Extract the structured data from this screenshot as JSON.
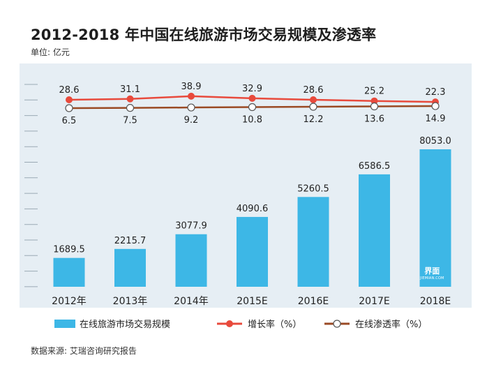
{
  "title": "2012-2018 年中国在线旅游市场交易规模及渗透率",
  "unit": "单位: 亿元",
  "source": "数据来源: 艾瑞咨询研究报告",
  "watermark": {
    "logo": "界面",
    "sub": "JIEMIAN.COM"
  },
  "colors": {
    "panel": "#e6eef4",
    "bar": "#3db7e6",
    "growth": "#e84a3c",
    "penetration": "#9a4a24"
  },
  "chart_data": {
    "type": "bar",
    "title": "2012-2018 年中国在线旅游市场交易规模及渗透率",
    "ylabel": "单位: 亿元",
    "categories": [
      "2012年",
      "2013年",
      "2014年",
      "2015E",
      "2016E",
      "2017E",
      "2018E"
    ],
    "ylim": [
      0,
      10000
    ],
    "series": [
      {
        "name": "在线旅游市场交易规模",
        "type": "bar",
        "values": [
          1689.5,
          2215.7,
          3077.9,
          4090.6,
          5260.5,
          6586.5,
          8053.0
        ],
        "labels": [
          "1689.5",
          "2215.7",
          "3077.9",
          "4090.6",
          "5260.5",
          "6586.5",
          "8053.0"
        ]
      },
      {
        "name": "增长率（%）",
        "type": "line",
        "values": [
          28.6,
          31.1,
          38.9,
          32.9,
          28.6,
          25.2,
          22.3
        ],
        "labels": [
          "28.6",
          "31.1",
          "38.9",
          "32.9",
          "28.6",
          "25.2",
          "22.3"
        ]
      },
      {
        "name": "在线渗透率（%）",
        "type": "line",
        "values": [
          6.5,
          7.5,
          9.2,
          10.8,
          12.2,
          13.6,
          14.9
        ],
        "labels": [
          "6.5",
          "7.5",
          "9.2",
          "10.8",
          "12.2",
          "13.6",
          "14.9"
        ]
      }
    ],
    "legend": "bottom"
  }
}
